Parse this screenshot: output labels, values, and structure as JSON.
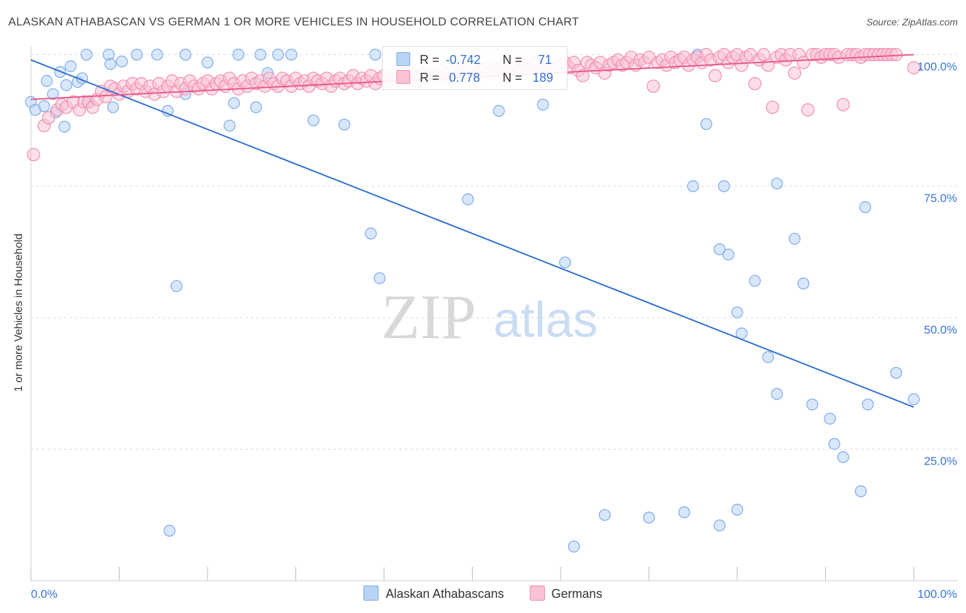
{
  "title": "ALASKAN ATHABASCAN VS GERMAN 1 OR MORE VEHICLES IN HOUSEHOLD CORRELATION CHART",
  "source": "Source: ZipAtlas.com",
  "watermark": {
    "zip": "ZIP",
    "atlas": "atlas"
  },
  "legend": {
    "rows": [
      {
        "r_label": "R =",
        "r_value": "-0.742",
        "n_label": "N =",
        "n_value": "71",
        "color": "#7aaae8",
        "fill": "#b9d3f5"
      },
      {
        "r_label": "R =",
        "r_value": " 0.778",
        "n_label": "N =",
        "n_value": "189",
        "color": "#f08cb0",
        "fill": "#f9c3d6"
      }
    ]
  },
  "colors": {
    "blue_line": "#2f6fd1",
    "pink_line": "#e85a8a",
    "grid": "#dcdcdc",
    "axis_label": "#3a74d6"
  },
  "chart_data": {
    "type": "scatter",
    "title": "ALASKAN ATHABASCAN VS GERMAN 1 OR MORE VEHICLES IN HOUSEHOLD CORRELATION CHART",
    "xlabel": "",
    "ylabel": "1 or more Vehicles in Household",
    "xlim": [
      0,
      100
    ],
    "ylim": [
      0,
      104
    ],
    "x_tick_labels": [
      "0.0%",
      "100.0%"
    ],
    "y_tick_labels": [
      "25.0%",
      "50.0%",
      "75.0%",
      "100.0%"
    ],
    "y_ticks": [
      25,
      50,
      75,
      100
    ],
    "grid": true,
    "legend_position": "bottom",
    "series": [
      {
        "name": "Alaskan Athabascans",
        "color": "#7aaae8",
        "fill": "#b9d3f5",
        "trend": [
          [
            0,
            99
          ],
          [
            100,
            33
          ]
        ],
        "points": [
          [
            0.0,
            91.0
          ],
          [
            0.5,
            89.5
          ],
          [
            1.5,
            90.2
          ],
          [
            1.8,
            95.0
          ],
          [
            2.5,
            92.5
          ],
          [
            2.8,
            89.0
          ],
          [
            3.3,
            96.7
          ],
          [
            3.8,
            86.3
          ],
          [
            4.0,
            94.2
          ],
          [
            4.5,
            97.8
          ],
          [
            5.3,
            94.8
          ],
          [
            5.8,
            95.5
          ],
          [
            6.5,
            91.0
          ],
          [
            6.3,
            100.0
          ],
          [
            8.8,
            100.0
          ],
          [
            9.0,
            98.2
          ],
          [
            9.3,
            90.0
          ],
          [
            10.3,
            98.7
          ],
          [
            12.0,
            100.0
          ],
          [
            14.3,
            100.0
          ],
          [
            17.5,
            100.0
          ],
          [
            20.0,
            98.5
          ],
          [
            15.5,
            89.3
          ],
          [
            17.5,
            92.5
          ],
          [
            16.5,
            56.0
          ],
          [
            15.7,
            9.5
          ],
          [
            23.0,
            90.8
          ],
          [
            22.5,
            86.5
          ],
          [
            23.5,
            100.0
          ],
          [
            26.0,
            100.0
          ],
          [
            25.5,
            90.0
          ],
          [
            26.8,
            96.5
          ],
          [
            28.0,
            100.0
          ],
          [
            29.5,
            100.0
          ],
          [
            32.0,
            87.5
          ],
          [
            35.5,
            86.7
          ],
          [
            38.5,
            66.0
          ],
          [
            39.5,
            57.5
          ],
          [
            39.0,
            100.0
          ],
          [
            49.5,
            72.5
          ],
          [
            53.0,
            89.3
          ],
          [
            58.0,
            90.5
          ],
          [
            60.5,
            60.5
          ],
          [
            61.5,
            6.5
          ],
          [
            65.0,
            12.5
          ],
          [
            70.0,
            12.0
          ],
          [
            75.5,
            100.0
          ],
          [
            75.0,
            75.0
          ],
          [
            76.5,
            86.8
          ],
          [
            78.0,
            63.0
          ],
          [
            79.0,
            62.0
          ],
          [
            78.5,
            75.0
          ],
          [
            74.0,
            13.0
          ],
          [
            80.0,
            51.0
          ],
          [
            80.5,
            47.0
          ],
          [
            82.0,
            57.0
          ],
          [
            83.5,
            42.5
          ],
          [
            84.5,
            35.5
          ],
          [
            84.5,
            75.5
          ],
          [
            80.0,
            13.5
          ],
          [
            78.0,
            10.5
          ],
          [
            86.5,
            65.0
          ],
          [
            87.5,
            56.5
          ],
          [
            88.5,
            33.5
          ],
          [
            90.5,
            30.8
          ],
          [
            91.0,
            26.0
          ],
          [
            92.0,
            23.5
          ],
          [
            94.0,
            17.0
          ],
          [
            94.5,
            71.0
          ],
          [
            94.8,
            33.5
          ],
          [
            98.0,
            39.5
          ],
          [
            100.0,
            34.5
          ]
        ]
      },
      {
        "name": "Germans",
        "color": "#f08cb0",
        "fill": "#f9c3d6",
        "trend": [
          [
            0,
            91.5
          ],
          [
            100,
            100
          ]
        ],
        "points": [
          [
            0.3,
            81.0
          ],
          [
            1.5,
            86.5
          ],
          [
            2.0,
            88.0
          ],
          [
            3.0,
            89.5
          ],
          [
            3.5,
            90.5
          ],
          [
            4.0,
            90.0
          ],
          [
            4.8,
            91.0
          ],
          [
            5.5,
            89.5
          ],
          [
            6.0,
            91.0
          ],
          [
            6.5,
            91.0
          ],
          [
            7.0,
            90.0
          ],
          [
            7.5,
            91.5
          ],
          [
            8.0,
            93.0
          ],
          [
            8.5,
            92.0
          ],
          [
            9.0,
            94.0
          ],
          [
            9.5,
            93.5
          ],
          [
            10.0,
            92.5
          ],
          [
            10.5,
            94.0
          ],
          [
            11.0,
            93.0
          ],
          [
            11.5,
            94.5
          ],
          [
            12.0,
            93.5
          ],
          [
            12.5,
            94.5
          ],
          [
            13.0,
            93.0
          ],
          [
            13.5,
            94.0
          ],
          [
            14.0,
            92.5
          ],
          [
            14.5,
            94.5
          ],
          [
            15.0,
            93.0
          ],
          [
            15.5,
            94.0
          ],
          [
            16.0,
            95.0
          ],
          [
            16.5,
            93.0
          ],
          [
            17.0,
            94.5
          ],
          [
            17.5,
            93.5
          ],
          [
            18.0,
            95.0
          ],
          [
            18.5,
            94.0
          ],
          [
            19.0,
            93.5
          ],
          [
            19.5,
            94.5
          ],
          [
            20.0,
            95.0
          ],
          [
            20.5,
            93.5
          ],
          [
            21.0,
            94.5
          ],
          [
            21.5,
            95.0
          ],
          [
            22.0,
            94.0
          ],
          [
            22.5,
            95.5
          ],
          [
            23.0,
            94.5
          ],
          [
            23.5,
            93.5
          ],
          [
            24.0,
            95.0
          ],
          [
            24.5,
            94.0
          ],
          [
            25.0,
            95.5
          ],
          [
            25.5,
            94.5
          ],
          [
            26.0,
            95.0
          ],
          [
            26.5,
            94.0
          ],
          [
            27.0,
            95.5
          ],
          [
            27.5,
            94.5
          ],
          [
            28.0,
            94.0
          ],
          [
            28.5,
            95.5
          ],
          [
            29.0,
            95.0
          ],
          [
            29.5,
            94.0
          ],
          [
            30.0,
            95.5
          ],
          [
            30.5,
            94.5
          ],
          [
            31.0,
            95.0
          ],
          [
            31.5,
            94.0
          ],
          [
            32.0,
            95.5
          ],
          [
            32.5,
            95.0
          ],
          [
            33.0,
            94.5
          ],
          [
            33.5,
            95.5
          ],
          [
            34.0,
            94.0
          ],
          [
            34.5,
            95.0
          ],
          [
            35.0,
            95.5
          ],
          [
            35.5,
            94.5
          ],
          [
            36.0,
            95.0
          ],
          [
            36.5,
            96.0
          ],
          [
            37.0,
            94.5
          ],
          [
            37.5,
            95.5
          ],
          [
            38.0,
            95.0
          ],
          [
            38.5,
            96.0
          ],
          [
            39.0,
            94.5
          ],
          [
            39.5,
            95.5
          ],
          [
            40.0,
            96.0
          ],
          [
            40.5,
            95.0
          ],
          [
            41.0,
            96.5
          ],
          [
            41.5,
            95.0
          ],
          [
            42.0,
            96.0
          ],
          [
            42.5,
            95.5
          ],
          [
            43.0,
            96.5
          ],
          [
            43.5,
            95.0
          ],
          [
            44.0,
            96.0
          ],
          [
            44.5,
            96.5
          ],
          [
            45.0,
            95.5
          ],
          [
            45.5,
            96.5
          ],
          [
            46.0,
            96.0
          ],
          [
            46.5,
            97.0
          ],
          [
            47.0,
            95.5
          ],
          [
            47.5,
            96.5
          ],
          [
            48.0,
            97.0
          ],
          [
            48.5,
            96.0
          ],
          [
            49.0,
            97.0
          ],
          [
            49.5,
            96.5
          ],
          [
            50.0,
            97.5
          ],
          [
            50.5,
            96.0
          ],
          [
            51.0,
            97.0
          ],
          [
            51.5,
            97.5
          ],
          [
            52.0,
            96.5
          ],
          [
            52.5,
            97.5
          ],
          [
            53.0,
            97.0
          ],
          [
            53.5,
            98.0
          ],
          [
            54.0,
            96.5
          ],
          [
            54.5,
            97.5
          ],
          [
            55.0,
            98.0
          ],
          [
            55.5,
            97.0
          ],
          [
            56.0,
            98.0
          ],
          [
            56.5,
            97.5
          ],
          [
            57.0,
            98.5
          ],
          [
            57.5,
            97.0
          ],
          [
            58.0,
            98.0
          ],
          [
            58.5,
            96.5
          ],
          [
            59.0,
            98.5
          ],
          [
            59.5,
            97.5
          ],
          [
            60.0,
            98.0
          ],
          [
            60.5,
            98.5
          ],
          [
            61.0,
            97.5
          ],
          [
            61.5,
            98.5
          ],
          [
            62.0,
            97.0
          ],
          [
            62.5,
            96.0
          ],
          [
            63.0,
            98.5
          ],
          [
            63.5,
            98.0
          ],
          [
            64.0,
            97.5
          ],
          [
            64.5,
            98.5
          ],
          [
            65.0,
            96.5
          ],
          [
            65.5,
            98.0
          ],
          [
            66.0,
            98.5
          ],
          [
            66.5,
            99.0
          ],
          [
            67.0,
            98.0
          ],
          [
            67.5,
            98.5
          ],
          [
            68.0,
            99.5
          ],
          [
            68.5,
            98.0
          ],
          [
            69.0,
            99.0
          ],
          [
            69.5,
            98.5
          ],
          [
            70.0,
            99.5
          ],
          [
            70.5,
            94.0
          ],
          [
            71.0,
            98.5
          ],
          [
            71.5,
            99.0
          ],
          [
            72.0,
            98.0
          ],
          [
            72.5,
            99.5
          ],
          [
            73.0,
            98.5
          ],
          [
            73.5,
            99.0
          ],
          [
            74.0,
            99.5
          ],
          [
            74.5,
            98.0
          ],
          [
            75.0,
            99.0
          ],
          [
            75.5,
            99.5
          ],
          [
            76.0,
            98.5
          ],
          [
            76.5,
            100.0
          ],
          [
            77.0,
            99.0
          ],
          [
            77.5,
            96.0
          ],
          [
            78.0,
            99.5
          ],
          [
            78.5,
            100.0
          ],
          [
            79.0,
            98.5
          ],
          [
            79.5,
            99.5
          ],
          [
            80.0,
            100.0
          ],
          [
            80.5,
            98.0
          ],
          [
            81.0,
            99.5
          ],
          [
            81.5,
            100.0
          ],
          [
            82.0,
            94.5
          ],
          [
            82.5,
            99.0
          ],
          [
            83.0,
            100.0
          ],
          [
            83.5,
            98.0
          ],
          [
            84.0,
            90.0
          ],
          [
            84.5,
            99.5
          ],
          [
            85.0,
            100.0
          ],
          [
            85.5,
            99.0
          ],
          [
            86.0,
            100.0
          ],
          [
            86.5,
            96.5
          ],
          [
            87.0,
            100.0
          ],
          [
            87.5,
            98.5
          ],
          [
            88.0,
            89.5
          ],
          [
            88.5,
            100.0
          ],
          [
            89.0,
            100.0
          ],
          [
            89.5,
            99.5
          ],
          [
            90.0,
            100.0
          ],
          [
            90.5,
            100.0
          ],
          [
            91.0,
            100.0
          ],
          [
            91.5,
            99.5
          ],
          [
            92.0,
            90.5
          ],
          [
            92.5,
            100.0
          ],
          [
            93.0,
            100.0
          ],
          [
            93.5,
            100.0
          ],
          [
            94.0,
            99.5
          ],
          [
            94.5,
            100.0
          ],
          [
            95.0,
            100.0
          ],
          [
            95.5,
            100.0
          ],
          [
            96.0,
            100.0
          ],
          [
            96.5,
            100.0
          ],
          [
            97.0,
            100.0
          ],
          [
            97.5,
            100.0
          ],
          [
            98.0,
            100.0
          ],
          [
            100.0,
            97.5
          ]
        ]
      }
    ]
  }
}
